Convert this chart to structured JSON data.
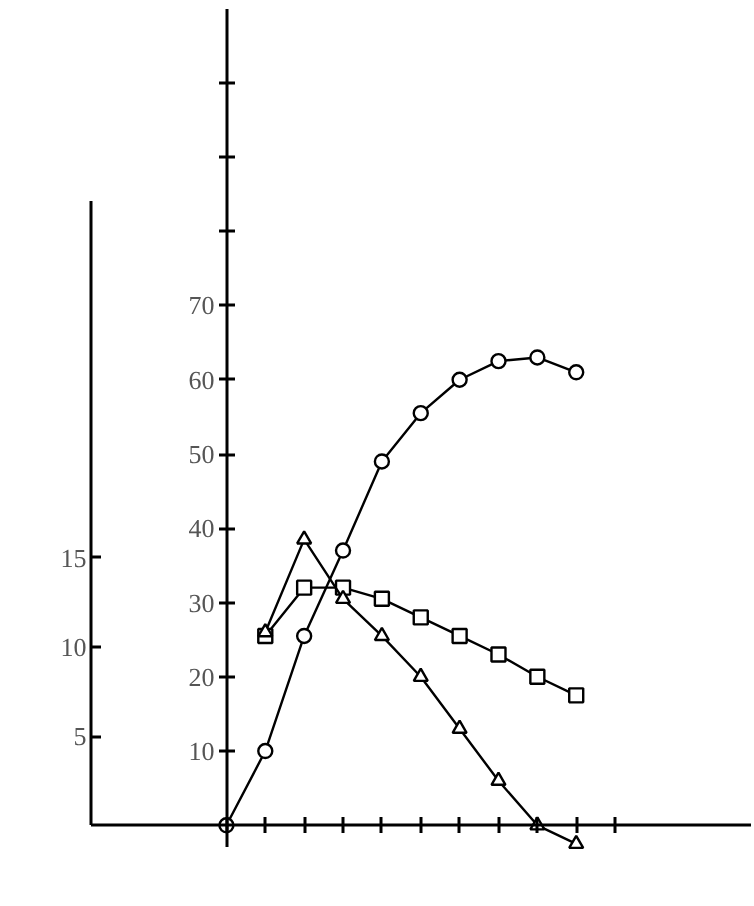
{
  "chart_data": {
    "type": "line",
    "categories": [
      null,
      null,
      null,
      null,
      null,
      null,
      null,
      null,
      null,
      null,
      null
    ],
    "ylim": [
      -3,
      110
    ],
    "y2lim": [
      0,
      35
    ],
    "yticks": [
      10,
      20,
      30,
      40,
      50,
      60,
      70,
      {
        "value": 80,
        "label": null
      },
      {
        "value": 90,
        "label": null
      },
      {
        "value": 100,
        "label": null
      }
    ],
    "y2ticks": [
      5,
      10,
      15
    ],
    "tick_labels": "y",
    "grid": false,
    "series": [
      {
        "color": "#000000",
        "marker": "circle",
        "values": [
          0,
          10,
          25.5,
          37,
          49,
          55.5,
          60,
          62.5,
          63,
          61,
          null
        ]
      },
      {
        "color": "#000000",
        "marker": "square",
        "values": [
          null,
          25.5,
          32,
          32,
          30.5,
          28,
          25.5,
          23,
          20,
          17.5,
          null
        ]
      },
      {
        "color": "#000000",
        "marker": "triangle",
        "values": [
          null,
          26,
          38.5,
          30.5,
          25.5,
          20,
          13,
          6,
          0,
          -2.5,
          null
        ]
      }
    ]
  }
}
